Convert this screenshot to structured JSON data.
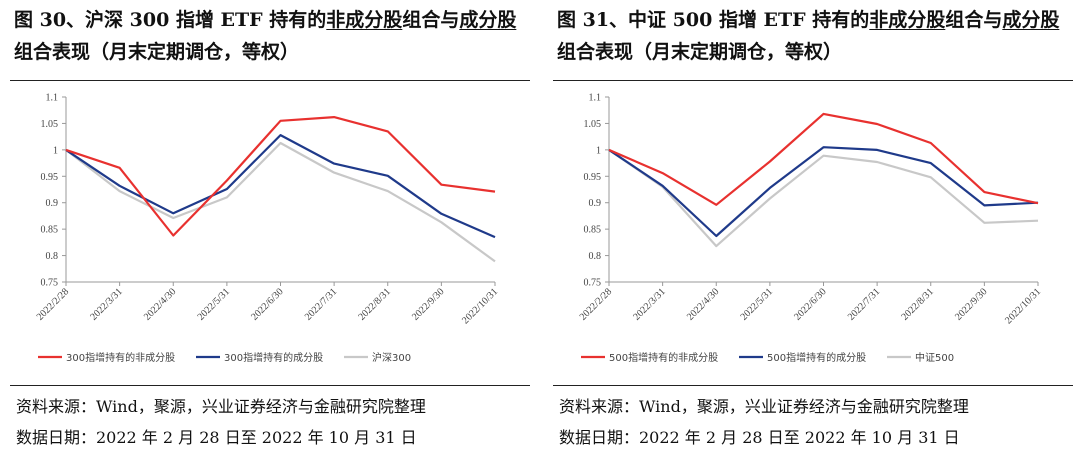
{
  "panels": [
    {
      "title_pre": "图 30、沪深 300 指增 ETF 持有的",
      "title_u1": "非成分股",
      "title_mid": "组合与",
      "title_u2": "成分股",
      "title_post": "组合表现（月末定期调仓，等权）",
      "source": "资料来源：Wind，聚源，兴业证券经济与金融研究院整理",
      "date_note": "数据日期：2022 年 2 月 28 日至 2022 年 10 月 31 日"
    },
    {
      "title_pre": "图 31、中证 500 指增 ETF 持有的",
      "title_u1": "非成分股",
      "title_mid": "组合与",
      "title_u2": "成分股",
      "title_post": "组合表现（月末定期调仓，等权）",
      "source": "资料来源：Wind，聚源，兴业证券经济与金融研究院整理",
      "date_note": "数据日期：2022 年 2 月 28 日至 2022 年 10 月 31 日"
    }
  ],
  "chart_data": [
    {
      "type": "line",
      "x": [
        "2022/2/28",
        "2022/3/31",
        "2022/4/30",
        "2022/5/31",
        "2022/6/30",
        "2022/7/31",
        "2022/8/31",
        "2022/9/30",
        "2022/10/31"
      ],
      "ylim": [
        0.75,
        1.1
      ],
      "yticks": [
        "0.75",
        "0.8",
        "0.85",
        "0.9",
        "0.95",
        "1",
        "1.05",
        "1.1"
      ],
      "legend_position": "bottom",
      "series": [
        {
          "name": "300指增持有的非成分股",
          "color": "#e8312f",
          "values": [
            1.0,
            0.966,
            0.838,
            0.942,
            1.055,
            1.062,
            1.035,
            0.934,
            0.921
          ]
        },
        {
          "name": "300指增持有的成分股",
          "color": "#1f3a8a",
          "values": [
            1.0,
            0.932,
            0.88,
            0.926,
            1.028,
            0.974,
            0.951,
            0.879,
            0.835
          ]
        },
        {
          "name": "沪深300",
          "color": "#c8c8c8",
          "values": [
            1.0,
            0.922,
            0.871,
            0.91,
            1.013,
            0.957,
            0.922,
            0.863,
            0.789
          ]
        }
      ]
    },
    {
      "type": "line",
      "x": [
        "2022/2/28",
        "2022/3/31",
        "2022/4/30",
        "2022/5/31",
        "2022/6/30",
        "2022/7/31",
        "2022/8/31",
        "2022/9/30",
        "2022/10/31"
      ],
      "ylim": [
        0.75,
        1.1
      ],
      "yticks": [
        "0.75",
        "0.8",
        "0.85",
        "0.9",
        "0.95",
        "1",
        "1.05",
        "1.1"
      ],
      "legend_position": "bottom",
      "series": [
        {
          "name": "500指增持有的非成分股",
          "color": "#e8312f",
          "values": [
            1.0,
            0.956,
            0.896,
            0.978,
            1.068,
            1.049,
            1.013,
            0.92,
            0.899
          ]
        },
        {
          "name": "500指增持有的成分股",
          "color": "#1f3a8a",
          "values": [
            1.0,
            0.932,
            0.837,
            0.928,
            1.005,
            1.0,
            0.975,
            0.895,
            0.9
          ]
        },
        {
          "name": "中证500",
          "color": "#c8c8c8",
          "values": [
            1.0,
            0.93,
            0.818,
            0.908,
            0.989,
            0.977,
            0.948,
            0.862,
            0.866
          ]
        }
      ]
    }
  ]
}
